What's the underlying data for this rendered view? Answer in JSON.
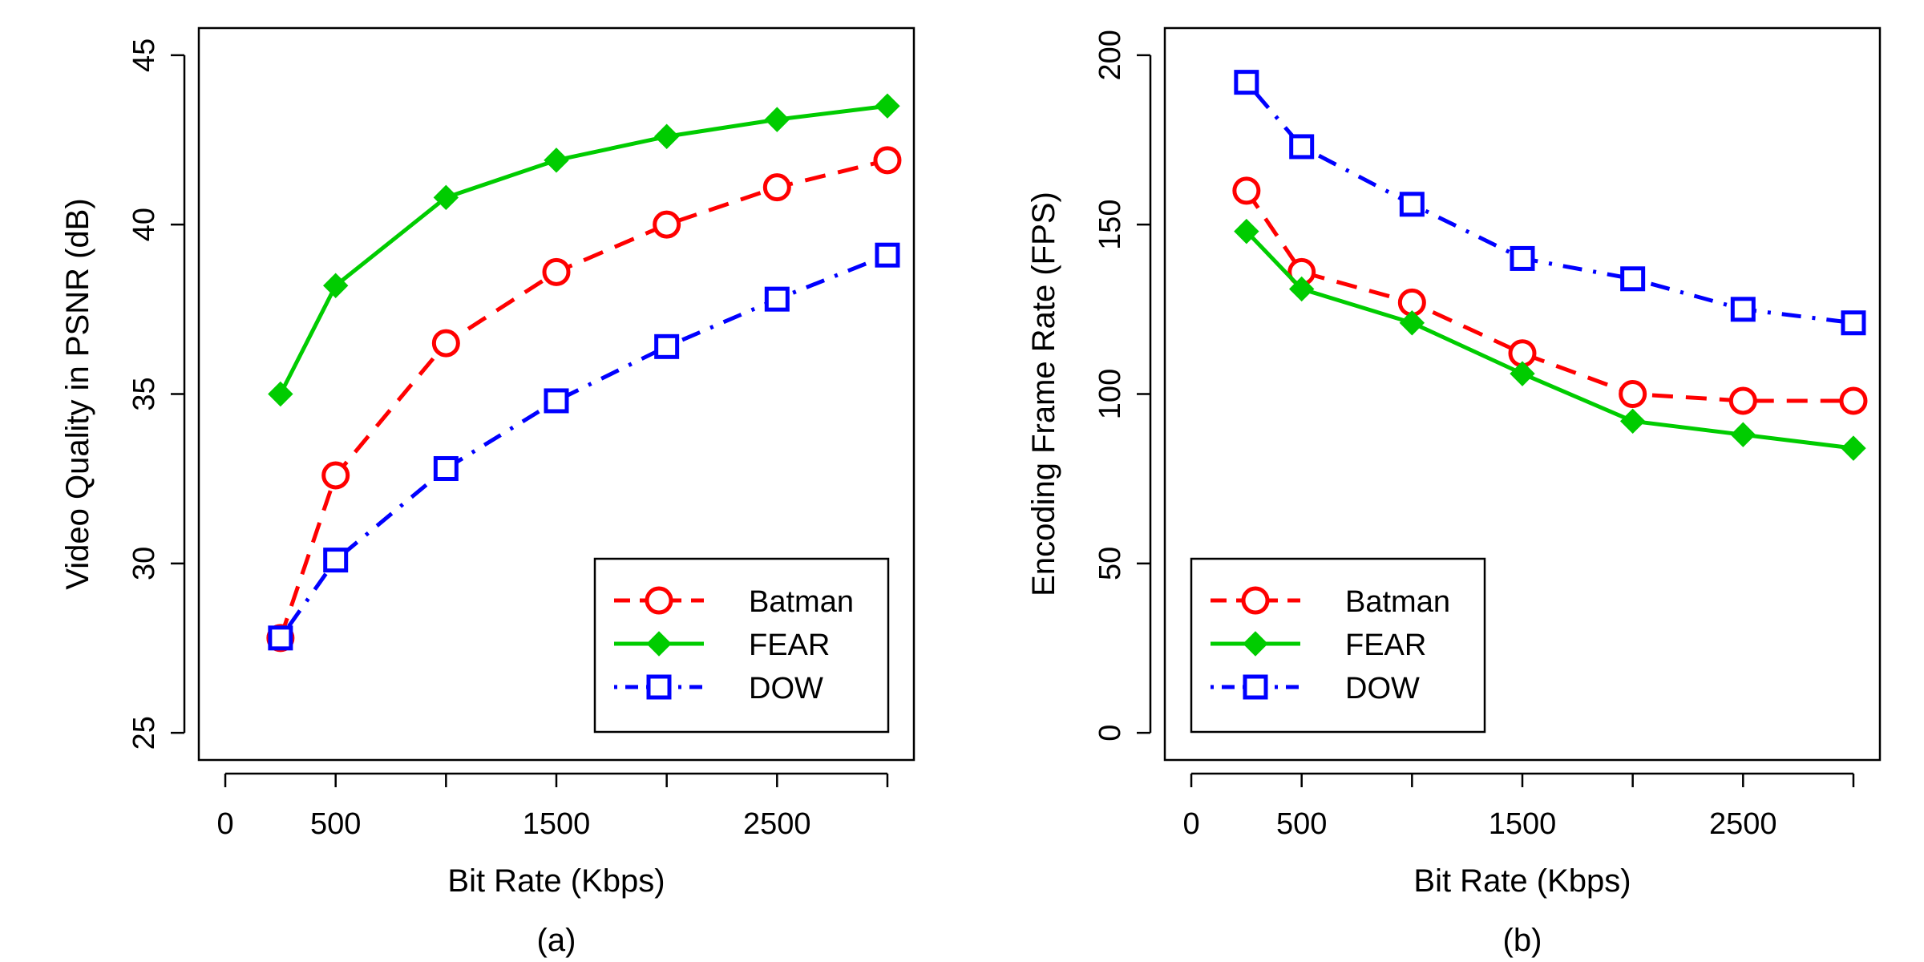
{
  "chart_data": [
    {
      "type": "line",
      "panel_label": "(a)",
      "xlabel": "Bit Rate (Kbps)",
      "ylabel": "Video Quality in PSNR (dB)",
      "xlim": [
        -120,
        3120
      ],
      "ylim": [
        24.2,
        45.8
      ],
      "xticks": [
        0,
        500,
        1000,
        1500,
        2000,
        2500,
        3000
      ],
      "xtick_labels": [
        "0",
        "500",
        "",
        "1500",
        "",
        "2500",
        ""
      ],
      "yticks": [
        25,
        30,
        35,
        40,
        45
      ],
      "ytick_labels": [
        "25",
        "30",
        "35",
        "40",
        "45"
      ],
      "legend_position": "bottom-right",
      "series": [
        {
          "name": "Batman",
          "color": "#ff0000",
          "marker": "circle",
          "line": "dashed",
          "x": [
            250,
            500,
            1000,
            1500,
            2000,
            2500,
            3000
          ],
          "y": [
            27.8,
            32.6,
            36.5,
            38.6,
            40.0,
            41.1,
            41.9
          ]
        },
        {
          "name": "FEAR",
          "color": "#00cc00",
          "marker": "diamond",
          "line": "solid",
          "x": [
            250,
            500,
            1000,
            1500,
            2000,
            2500,
            3000
          ],
          "y": [
            35.0,
            38.2,
            40.8,
            41.9,
            42.6,
            43.1,
            43.5
          ]
        },
        {
          "name": "DOW",
          "color": "#0000ff",
          "marker": "square",
          "line": "dotdash",
          "x": [
            250,
            500,
            1000,
            1500,
            2000,
            2500,
            3000
          ],
          "y": [
            27.8,
            30.1,
            32.8,
            34.8,
            36.4,
            37.8,
            39.1
          ]
        }
      ]
    },
    {
      "type": "line",
      "panel_label": "(b)",
      "xlabel": "Bit Rate (Kbps)",
      "ylabel": "Encoding Frame Rate (FPS)",
      "xlim": [
        -120,
        3120
      ],
      "ylim": [
        -8,
        208
      ],
      "xticks": [
        0,
        500,
        1000,
        1500,
        2000,
        2500,
        3000
      ],
      "xtick_labels": [
        "0",
        "500",
        "",
        "1500",
        "",
        "2500",
        ""
      ],
      "yticks": [
        0,
        50,
        100,
        150,
        200
      ],
      "ytick_labels": [
        "0",
        "50",
        "100",
        "150",
        "200"
      ],
      "legend_position": "bottom-left",
      "series": [
        {
          "name": "Batman",
          "color": "#ff0000",
          "marker": "circle",
          "line": "dashed",
          "x": [
            250,
            500,
            1000,
            1500,
            2000,
            2500,
            3000
          ],
          "y": [
            160,
            136,
            127,
            112,
            100,
            98,
            98
          ]
        },
        {
          "name": "FEAR",
          "color": "#00cc00",
          "marker": "diamond",
          "line": "solid",
          "x": [
            250,
            500,
            1000,
            1500,
            2000,
            2500,
            3000
          ],
          "y": [
            148,
            131,
            121,
            106,
            92,
            88,
            84
          ]
        },
        {
          "name": "DOW",
          "color": "#0000ff",
          "marker": "square",
          "line": "dotdash",
          "x": [
            250,
            500,
            1000,
            1500,
            2000,
            2500,
            3000
          ],
          "y": [
            192,
            173,
            156,
            140,
            134,
            125,
            121
          ]
        }
      ]
    }
  ]
}
